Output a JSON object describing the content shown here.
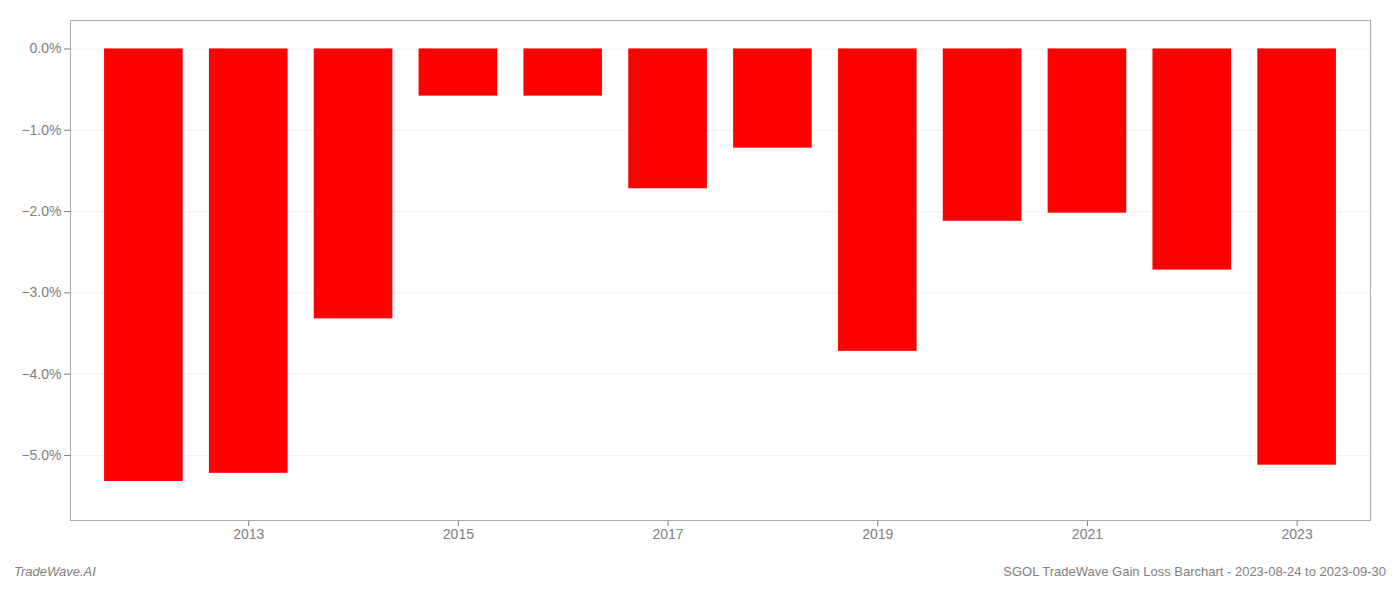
{
  "chart_data": {
    "type": "bar",
    "title": "SGOL TradeWave Gain Loss Barchart - 2023-08-24 to 2023-09-30",
    "annotations": [
      "TradeWave.AI"
    ],
    "x": [
      2012,
      2013,
      2014,
      2015,
      2016,
      2017,
      2018,
      2019,
      2020,
      2021,
      2022,
      2023
    ],
    "values": [
      -5.32,
      -5.22,
      -3.32,
      -0.58,
      -0.58,
      -1.72,
      -1.22,
      -3.72,
      -2.12,
      -2.02,
      -2.72,
      -5.12
    ],
    "color": "#FF0000",
    "xlim": [
      2011.3,
      2023.7
    ],
    "xticks": [
      2013,
      2015,
      2017,
      2019,
      2021,
      2023
    ],
    "ylim": [
      -5.8,
      0.35
    ],
    "yticks": [
      {
        "value": 0.0,
        "label": "0.0%"
      },
      {
        "value": -1.0,
        "label": "−1.0%"
      },
      {
        "value": -2.0,
        "label": "−2.0%"
      },
      {
        "value": -3.0,
        "label": "−3.0%"
      },
      {
        "value": -4.0,
        "label": "−4.0%"
      },
      {
        "value": -5.0,
        "label": "−5.0%"
      }
    ],
    "grid": true
  }
}
